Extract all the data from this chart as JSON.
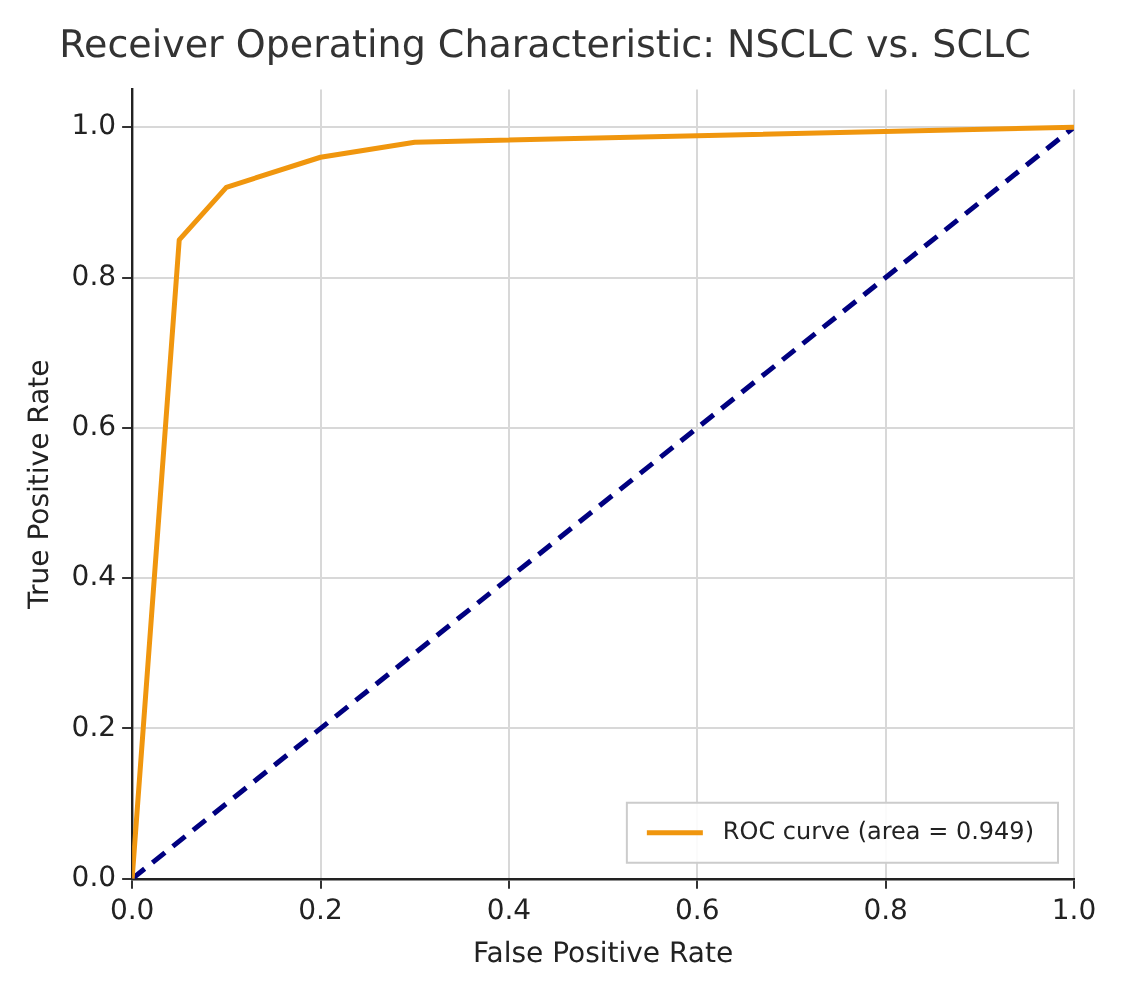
{
  "chart_data": {
    "type": "line",
    "title": "Receiver Operating Characteristic: NSCLC vs. SCLC",
    "xlabel": "False Positive Rate",
    "ylabel": "True Positive Rate",
    "series": [
      {
        "name": "ROC curve (area = 0.949)",
        "color": "#f0960e",
        "x": [
          0,
          0.05,
          0.1,
          0.2,
          0.3,
          1
        ],
        "values": [
          0,
          0.85,
          0.92,
          0.96,
          0.98,
          1
        ],
        "line_style": "solid"
      },
      {
        "color": "#000080",
        "x": [
          0,
          1
        ],
        "values": [
          0,
          1
        ],
        "line_style": "dashed"
      }
    ],
    "xlim": [
      0,
      1
    ],
    "ylim": [
      0,
      1.05
    ],
    "xticks": [
      {
        "value": 0,
        "label": "0.0"
      },
      {
        "value": 0.2,
        "label": "0.2"
      },
      {
        "value": 0.4,
        "label": "0.4"
      },
      {
        "value": 0.6,
        "label": "0.6"
      },
      {
        "value": 0.8,
        "label": "0.8"
      },
      {
        "value": 1,
        "label": "1.0"
      }
    ],
    "yticks": [
      {
        "value": 0,
        "label": "0.0"
      },
      {
        "value": 0.2,
        "label": "0.2"
      },
      {
        "value": 0.4,
        "label": "0.4"
      },
      {
        "value": 0.6,
        "label": "0.6"
      },
      {
        "value": 0.8,
        "label": "0.8"
      },
      {
        "value": 1,
        "label": "1.0"
      }
    ],
    "grid": true,
    "legend": "bottom right",
    "marker": "none"
  }
}
